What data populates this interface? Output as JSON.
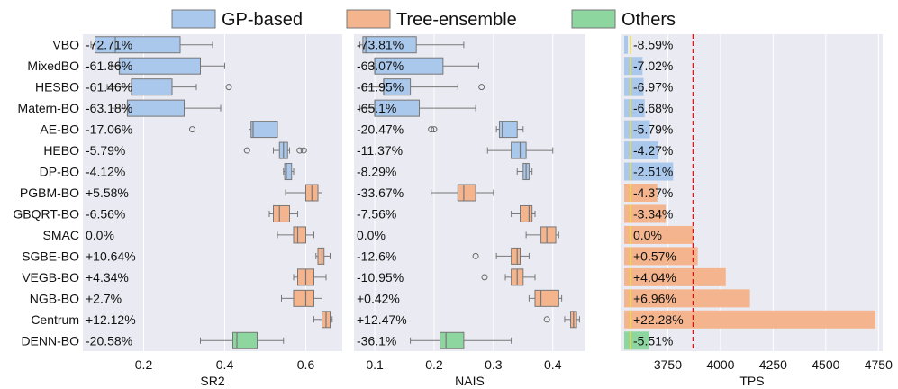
{
  "colors": {
    "gp": "#a9c8ec",
    "tree": "#f4b58e",
    "others": "#8ed6a0",
    "panel_bg": "#eaeaf2",
    "grid": "#ffffff",
    "box_edge": "#777777",
    "ref_line": "#dd1111",
    "median_line": "#f2df3a"
  },
  "legend": [
    {
      "key": "gp",
      "label": "GP-based"
    },
    {
      "key": "tree",
      "label": "Tree-ensemble"
    },
    {
      "key": "others",
      "label": "Others"
    }
  ],
  "chart_data": {
    "type": "box-and-bar",
    "methods": [
      "VBO",
      "MixedBO",
      "HESBO",
      "Matern-BO",
      "AE-BO",
      "HEBO",
      "DP-BO",
      "PGBM-BO",
      "GBQRT-BO",
      "SMAC",
      "SGBE-BO",
      "VEGB-BO",
      "NGB-BO",
      "Centrum",
      "DENN-BO"
    ],
    "groups": [
      "gp",
      "gp",
      "gp",
      "gp",
      "gp",
      "gp",
      "gp",
      "tree",
      "tree",
      "tree",
      "tree",
      "tree",
      "tree",
      "tree",
      "others"
    ],
    "panels": [
      {
        "xlabel": "SR2",
        "xlim": [
          0.05,
          0.69
        ],
        "ticks": [
          0.2,
          0.4,
          0.6
        ],
        "tick_labels": [
          "0.2",
          "0.4",
          "0.6"
        ],
        "annotations": [
          "-72.71%",
          "-61.86%",
          "-61.46%",
          "-63.18%",
          "-17.06%",
          "-5.79%",
          "-4.12%",
          "+5.58%",
          "-6.56%",
          "0.0%",
          "+10.64%",
          "+4.34%",
          "+2.7%",
          "+12.12%",
          "-20.58%"
        ],
        "boxes": [
          {
            "whislo": 0.07,
            "q1": 0.08,
            "med": 0.13,
            "q3": 0.29,
            "whishi": 0.37,
            "fliers": []
          },
          {
            "whislo": 0.12,
            "q1": 0.14,
            "med": 0.14,
            "q3": 0.34,
            "whishi": 0.4,
            "fliers": []
          },
          {
            "whislo": 0.11,
            "q1": 0.17,
            "med": 0.17,
            "q3": 0.27,
            "whishi": 0.33,
            "fliers": [
              0.41
            ]
          },
          {
            "whislo": 0.12,
            "q1": 0.16,
            "med": 0.16,
            "q3": 0.3,
            "whishi": 0.39,
            "fliers": []
          },
          {
            "whislo": 0.46,
            "q1": 0.465,
            "med": 0.47,
            "q3": 0.53,
            "whishi": 0.53,
            "fliers": [
              0.32
            ]
          },
          {
            "whislo": 0.52,
            "q1": 0.535,
            "med": 0.545,
            "q3": 0.555,
            "whishi": 0.56,
            "fliers": [
              0.455,
              0.585,
              0.595
            ]
          },
          {
            "whislo": 0.545,
            "q1": 0.548,
            "med": 0.552,
            "q3": 0.565,
            "whishi": 0.57,
            "fliers": []
          },
          {
            "whislo": 0.55,
            "q1": 0.6,
            "med": 0.615,
            "q3": 0.63,
            "whishi": 0.64,
            "fliers": []
          },
          {
            "whislo": 0.51,
            "q1": 0.52,
            "med": 0.535,
            "q3": 0.56,
            "whishi": 0.58,
            "fliers": []
          },
          {
            "whislo": 0.53,
            "q1": 0.57,
            "med": 0.58,
            "q3": 0.6,
            "whishi": 0.62,
            "fliers": []
          },
          {
            "whislo": 0.625,
            "q1": 0.63,
            "med": 0.64,
            "q3": 0.645,
            "whishi": 0.66,
            "fliers": []
          },
          {
            "whislo": 0.57,
            "q1": 0.58,
            "med": 0.6,
            "q3": 0.62,
            "whishi": 0.65,
            "fliers": []
          },
          {
            "whislo": 0.54,
            "q1": 0.57,
            "med": 0.6,
            "q3": 0.62,
            "whishi": 0.64,
            "fliers": []
          },
          {
            "whislo": 0.62,
            "q1": 0.64,
            "med": 0.65,
            "q3": 0.66,
            "whishi": 0.665,
            "fliers": []
          },
          {
            "whislo": 0.34,
            "q1": 0.42,
            "med": 0.43,
            "q3": 0.48,
            "whishi": 0.545,
            "fliers": []
          }
        ]
      },
      {
        "xlabel": "NAIS",
        "xlim": [
          0.065,
          0.455
        ],
        "ticks": [
          0.1,
          0.2,
          0.3,
          0.4
        ],
        "tick_labels": [
          "0.1",
          "0.2",
          "0.3",
          "0.4"
        ],
        "annotations": [
          "-73.81%",
          "-63.07%",
          "-61.95%",
          "-65.1%",
          "-20.47%",
          "-11.37%",
          "-8.29%",
          "-33.67%",
          "-7.56%",
          "0.0%",
          "-12.6%",
          "-10.95%",
          "+0.42%",
          "+12.47%",
          "-36.1%"
        ],
        "boxes": [
          {
            "whislo": 0.075,
            "q1": 0.08,
            "med": 0.085,
            "q3": 0.17,
            "whishi": 0.25,
            "fliers": []
          },
          {
            "whislo": 0.09,
            "q1": 0.1,
            "med": 0.1,
            "q3": 0.215,
            "whishi": 0.275,
            "fliers": []
          },
          {
            "whislo": 0.08,
            "q1": 0.115,
            "med": 0.115,
            "q3": 0.16,
            "whishi": 0.24,
            "fliers": [
              0.28
            ]
          },
          {
            "whislo": 0.075,
            "q1": 0.1,
            "med": 0.1,
            "q3": 0.175,
            "whishi": 0.27,
            "fliers": []
          },
          {
            "whislo": 0.305,
            "q1": 0.31,
            "med": 0.315,
            "q3": 0.34,
            "whishi": 0.35,
            "fliers": [
              0.195,
              0.2
            ]
          },
          {
            "whislo": 0.29,
            "q1": 0.33,
            "med": 0.345,
            "q3": 0.355,
            "whishi": 0.4,
            "fliers": []
          },
          {
            "whislo": 0.34,
            "q1": 0.35,
            "med": 0.355,
            "q3": 0.36,
            "whishi": 0.365,
            "fliers": []
          },
          {
            "whislo": 0.195,
            "q1": 0.24,
            "med": 0.25,
            "q3": 0.27,
            "whishi": 0.3,
            "fliers": []
          },
          {
            "whislo": 0.33,
            "q1": 0.345,
            "med": 0.36,
            "q3": 0.365,
            "whishi": 0.37,
            "fliers": []
          },
          {
            "whislo": 0.355,
            "q1": 0.38,
            "med": 0.39,
            "q3": 0.405,
            "whishi": 0.41,
            "fliers": []
          },
          {
            "whislo": 0.305,
            "q1": 0.33,
            "med": 0.34,
            "q3": 0.345,
            "whishi": 0.36,
            "fliers": [
              0.27
            ]
          },
          {
            "whislo": 0.32,
            "q1": 0.33,
            "med": 0.34,
            "q3": 0.35,
            "whishi": 0.37,
            "fliers": [
              0.285
            ]
          },
          {
            "whislo": 0.36,
            "q1": 0.37,
            "med": 0.38,
            "q3": 0.41,
            "whishi": 0.415,
            "fliers": []
          },
          {
            "whislo": 0.42,
            "q1": 0.43,
            "med": 0.435,
            "q3": 0.44,
            "whishi": 0.445,
            "fliers": [
              0.39
            ]
          },
          {
            "whislo": 0.16,
            "q1": 0.21,
            "med": 0.22,
            "q3": 0.25,
            "whishi": 0.33,
            "fliers": []
          }
        ]
      },
      {
        "xlabel": "TPS",
        "xlim": [
          3530,
          4770
        ],
        "ticks": [
          3750,
          4000,
          4250,
          4500,
          4750
        ],
        "tick_labels": [
          "3750",
          "4000",
          "4250",
          "4500",
          "4750"
        ],
        "reference_value": 3870,
        "annotations": [
          "-8.59%",
          "-7.02%",
          "-6.97%",
          "-6.68%",
          "-5.79%",
          "-4.27%",
          "-2.51%",
          "-4.37%",
          "-3.34%",
          "0.0%",
          "+0.57%",
          "+4.04%",
          "+6.96%",
          "+22.28%",
          "-5.51%"
        ],
        "bars": [
          3560,
          3630,
          3635,
          3640,
          3665,
          3705,
          3775,
          3700,
          3740,
          3870,
          3892,
          4025,
          4140,
          4735,
          3660
        ]
      }
    ]
  }
}
